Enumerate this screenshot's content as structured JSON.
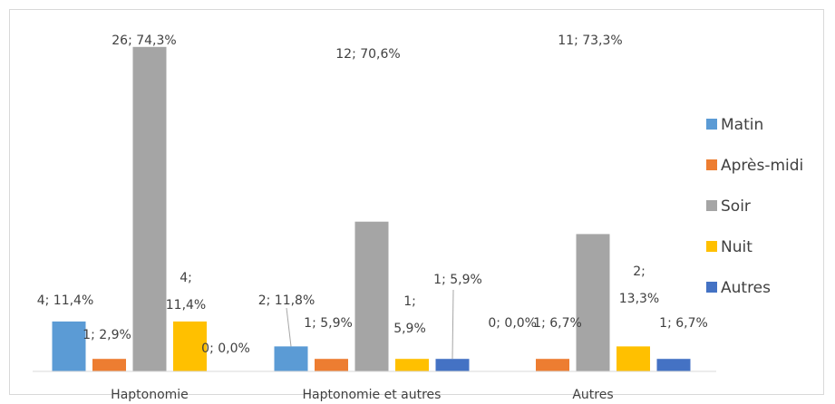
{
  "chart_data": {
    "type": "bar",
    "title": "",
    "xlabel": "",
    "ylabel": "",
    "ylim": [
      0,
      27
    ],
    "grid": false,
    "legend_position": "right",
    "categories": [
      "Haptonomie",
      "Haptonomie et autres",
      "Autres"
    ],
    "series": [
      {
        "name": "Matin",
        "color": "#5b9bd5",
        "values": [
          4,
          2,
          0
        ],
        "labels": [
          "4; 11,4%",
          "2; 11,8%",
          "0; 0,0%"
        ]
      },
      {
        "name": "Après-midi",
        "color": "#ed7d31",
        "values": [
          1,
          1,
          1
        ],
        "labels": [
          "1; 2,9%",
          "1; 5,9%",
          "1; 6,7%"
        ]
      },
      {
        "name": "Soir",
        "color": "#a5a5a5",
        "values": [
          26,
          12,
          11
        ],
        "labels": [
          "26; 74,3%",
          "12; 70,6%",
          "11; 73,3%"
        ]
      },
      {
        "name": "Nuit",
        "color": "#ffc000",
        "values": [
          4,
          1,
          2
        ],
        "labels": [
          "4;|11,4%",
          "1;|5,9%",
          "2;|13,3%"
        ]
      },
      {
        "name": "Autres",
        "color": "#4472c4",
        "values": [
          0,
          1,
          1
        ],
        "labels": [
          "0; 0,0%",
          "1; 5,9%",
          "1; 6,7%"
        ]
      }
    ]
  }
}
